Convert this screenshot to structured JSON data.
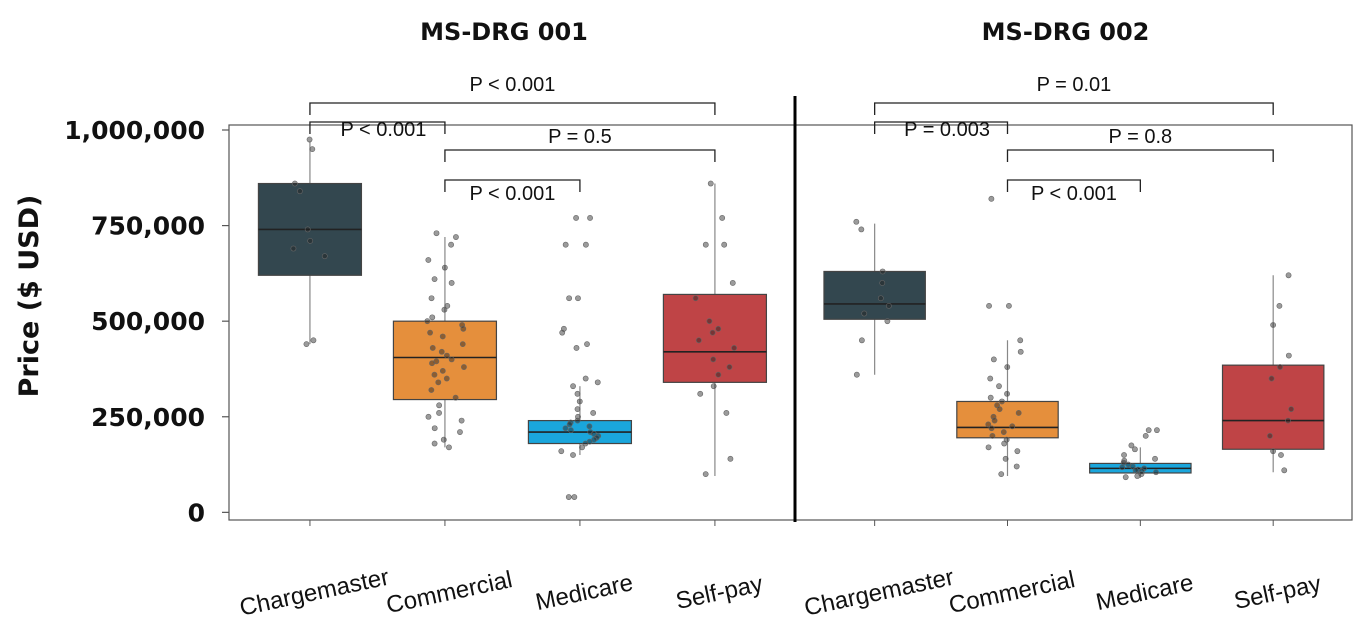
{
  "chart_data": {
    "type": "box",
    "ylabel": "Price ($ USD)",
    "yticks": [
      {
        "value": 0,
        "label": "0"
      },
      {
        "value": 250000,
        "label": "250,000"
      },
      {
        "value": 500000,
        "label": "500,000"
      },
      {
        "value": 750000,
        "label": "750,000"
      },
      {
        "value": 1000000,
        "label": "1,000,000"
      }
    ],
    "ylim": [
      -20000,
      1000000
    ],
    "categories": [
      "Chargemaster",
      "Commercial",
      "Medicare",
      "Self-pay"
    ],
    "colors": {
      "Chargemaster": "#33474f",
      "Commercial": "#e58f3c",
      "Medicare": "#1aa6dc",
      "Self-pay": "#bf4446"
    },
    "panels": [
      {
        "title": "MS-DRG 001",
        "boxes": [
          {
            "category": "Chargemaster",
            "whisker_low": 440000,
            "q1": 620000,
            "median": 740000,
            "q3": 860000,
            "whisker_high": 970000,
            "points": [
              975000,
              950000,
              860000,
              840000,
              740000,
              710000,
              690000,
              670000,
              450000,
              440000
            ]
          },
          {
            "category": "Commercial",
            "whisker_low": 170000,
            "q1": 295000,
            "median": 405000,
            "q3": 500000,
            "whisker_high": 720000,
            "points": [
              730000,
              720000,
              700000,
              660000,
              640000,
              610000,
              600000,
              560000,
              540000,
              530000,
              510000,
              500000,
              490000,
              480000,
              470000,
              460000,
              440000,
              430000,
              420000,
              410000,
              400000,
              395000,
              390000,
              380000,
              370000,
              360000,
              350000,
              340000,
              320000,
              300000,
              280000,
              260000,
              250000,
              240000,
              220000,
              210000,
              190000,
              180000,
              170000
            ]
          },
          {
            "category": "Medicare",
            "whisker_low": 150000,
            "q1": 180000,
            "median": 210000,
            "q3": 240000,
            "whisker_high": 330000,
            "points": [
              770000,
              770000,
              700000,
              700000,
              560000,
              560000,
              480000,
              470000,
              430000,
              440000,
              350000,
              340000,
              330000,
              310000,
              290000,
              270000,
              260000,
              250000,
              240000,
              235000,
              230000,
              225000,
              220000,
              215000,
              210000,
              205000,
              200000,
              195000,
              190000,
              185000,
              180000,
              170000,
              160000,
              150000,
              40000,
              40000
            ]
          },
          {
            "category": "Self-pay",
            "whisker_low": 95000,
            "q1": 340000,
            "median": 420000,
            "q3": 570000,
            "whisker_high": 860000,
            "points": [
              860000,
              770000,
              700000,
              700000,
              600000,
              560000,
              500000,
              480000,
              470000,
              450000,
              430000,
              400000,
              380000,
              360000,
              330000,
              310000,
              260000,
              140000,
              100000
            ]
          }
        ],
        "comparisons": [
          {
            "from": 0,
            "to": 3,
            "label": "P < 0.001",
            "level": 3
          },
          {
            "from": 0,
            "to": 1,
            "label": "P < 0.001",
            "level": 2
          },
          {
            "from": 1,
            "to": 3,
            "label": "P = 0.5",
            "level": 1
          },
          {
            "from": 1,
            "to": 2,
            "label": "P < 0.001",
            "level": 0
          }
        ]
      },
      {
        "title": "MS-DRG 002",
        "boxes": [
          {
            "category": "Chargemaster",
            "whisker_low": 360000,
            "q1": 505000,
            "median": 545000,
            "q3": 630000,
            "whisker_high": 755000,
            "points": [
              760000,
              740000,
              630000,
              600000,
              560000,
              540000,
              520000,
              500000,
              450000,
              360000
            ]
          },
          {
            "category": "Commercial",
            "whisker_low": 95000,
            "q1": 195000,
            "median": 222000,
            "q3": 290000,
            "whisker_high": 450000,
            "points": [
              820000,
              540000,
              540000,
              450000,
              420000,
              400000,
              380000,
              350000,
              330000,
              310000,
              300000,
              290000,
              280000,
              270000,
              260000,
              250000,
              240000,
              230000,
              225000,
              220000,
              210000,
              200000,
              190000,
              180000,
              170000,
              160000,
              140000,
              120000,
              100000
            ]
          },
          {
            "category": "Medicare",
            "whisker_low": 90000,
            "q1": 103000,
            "median": 115000,
            "q3": 128000,
            "whisker_high": 170000,
            "points": [
              215000,
              215000,
              200000,
              175000,
              165000,
              150000,
              140000,
              135000,
              130000,
              125000,
              120000,
              118000,
              115000,
              112000,
              110000,
              108000,
              105000,
              100000,
              95000,
              92000
            ]
          },
          {
            "category": "Self-pay",
            "whisker_low": 105000,
            "q1": 165000,
            "median": 240000,
            "q3": 385000,
            "whisker_high": 620000,
            "points": [
              620000,
              540000,
              490000,
              410000,
              380000,
              350000,
              270000,
              240000,
              200000,
              160000,
              150000,
              110000
            ]
          }
        ],
        "comparisons": [
          {
            "from": 0,
            "to": 3,
            "label": "P = 0.01",
            "level": 3
          },
          {
            "from": 0,
            "to": 1,
            "label": "P = 0.003",
            "level": 2
          },
          {
            "from": 1,
            "to": 3,
            "label": "P = 0.8",
            "level": 1
          },
          {
            "from": 1,
            "to": 2,
            "label": "P < 0.001",
            "level": 0
          }
        ]
      }
    ]
  }
}
